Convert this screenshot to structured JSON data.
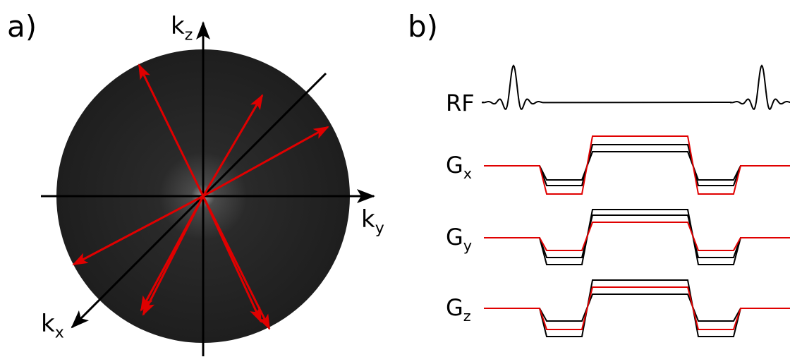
{
  "panel_a": {
    "label": "a)",
    "axes": {
      "kz": {
        "base": "k",
        "sub": "z"
      },
      "ky": {
        "base": "k",
        "sub": "y"
      },
      "kx": {
        "base": "k",
        "sub": "x"
      }
    }
  },
  "panel_b": {
    "label": "b)",
    "rows": [
      {
        "base": "RF",
        "sub": ""
      },
      {
        "base": "G",
        "sub": "x"
      },
      {
        "base": "G",
        "sub": "y"
      },
      {
        "base": "G",
        "sub": "z"
      }
    ]
  }
}
